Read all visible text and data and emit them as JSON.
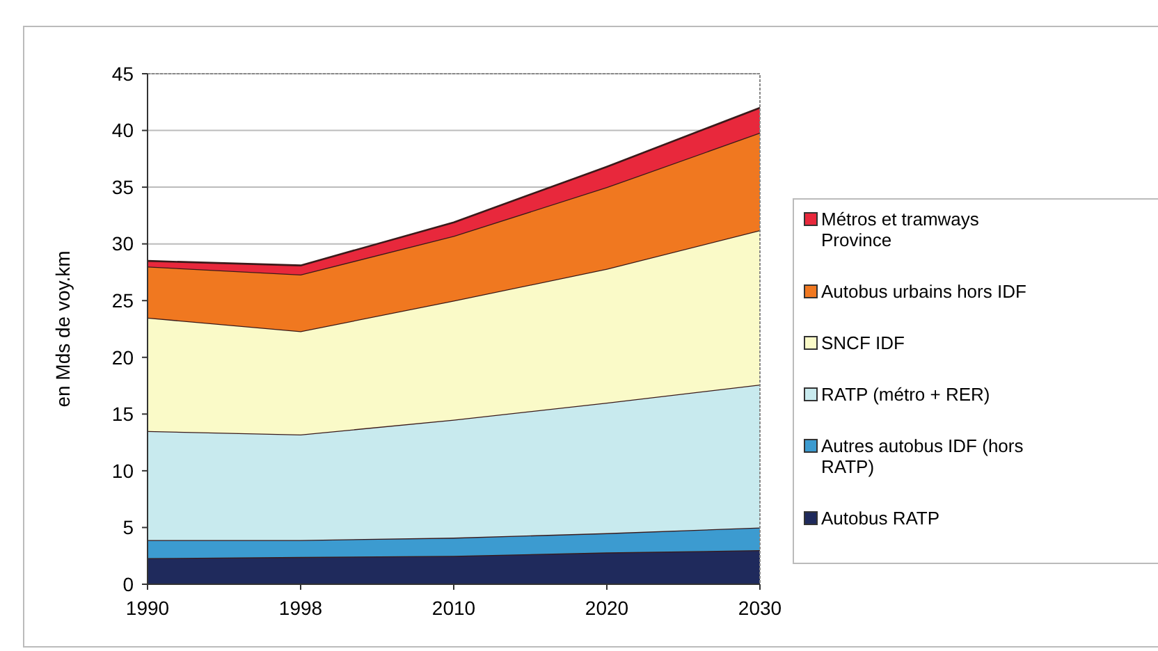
{
  "chart_data": {
    "type": "area",
    "stacked": true,
    "ylabel": "en Mds de voy.km",
    "categories": [
      "1990",
      "1998",
      "2010",
      "2020",
      "2030"
    ],
    "ylim": [
      0,
      45
    ],
    "yticks": [
      0,
      5,
      10,
      15,
      20,
      25,
      30,
      35,
      40,
      45
    ],
    "grid": "y",
    "legend": "right",
    "series": [
      {
        "name": "Autobus RATP",
        "color": "#1f2a5c",
        "values": [
          2.3,
          2.4,
          2.5,
          2.8,
          3.0
        ]
      },
      {
        "name": "Autres autobus IDF (hors RATP)",
        "color": "#3c9bd0",
        "values": [
          1.6,
          1.5,
          1.6,
          1.7,
          2.0
        ]
      },
      {
        "name": "RATP (métro + RER)",
        "color": "#c8eaee",
        "values": [
          9.6,
          9.3,
          10.4,
          11.5,
          12.6
        ]
      },
      {
        "name": "SNCF IDF",
        "color": "#fafac8",
        "values": [
          10.0,
          9.1,
          10.5,
          11.8,
          13.6
        ]
      },
      {
        "name": "Autobus urbains hors IDF",
        "color": "#f07820",
        "values": [
          4.5,
          5.0,
          5.7,
          7.2,
          8.6
        ]
      },
      {
        "name": "Métros et tramways Province",
        "color": "#e8283c",
        "values": [
          0.5,
          0.8,
          1.2,
          1.8,
          2.2
        ]
      }
    ]
  }
}
